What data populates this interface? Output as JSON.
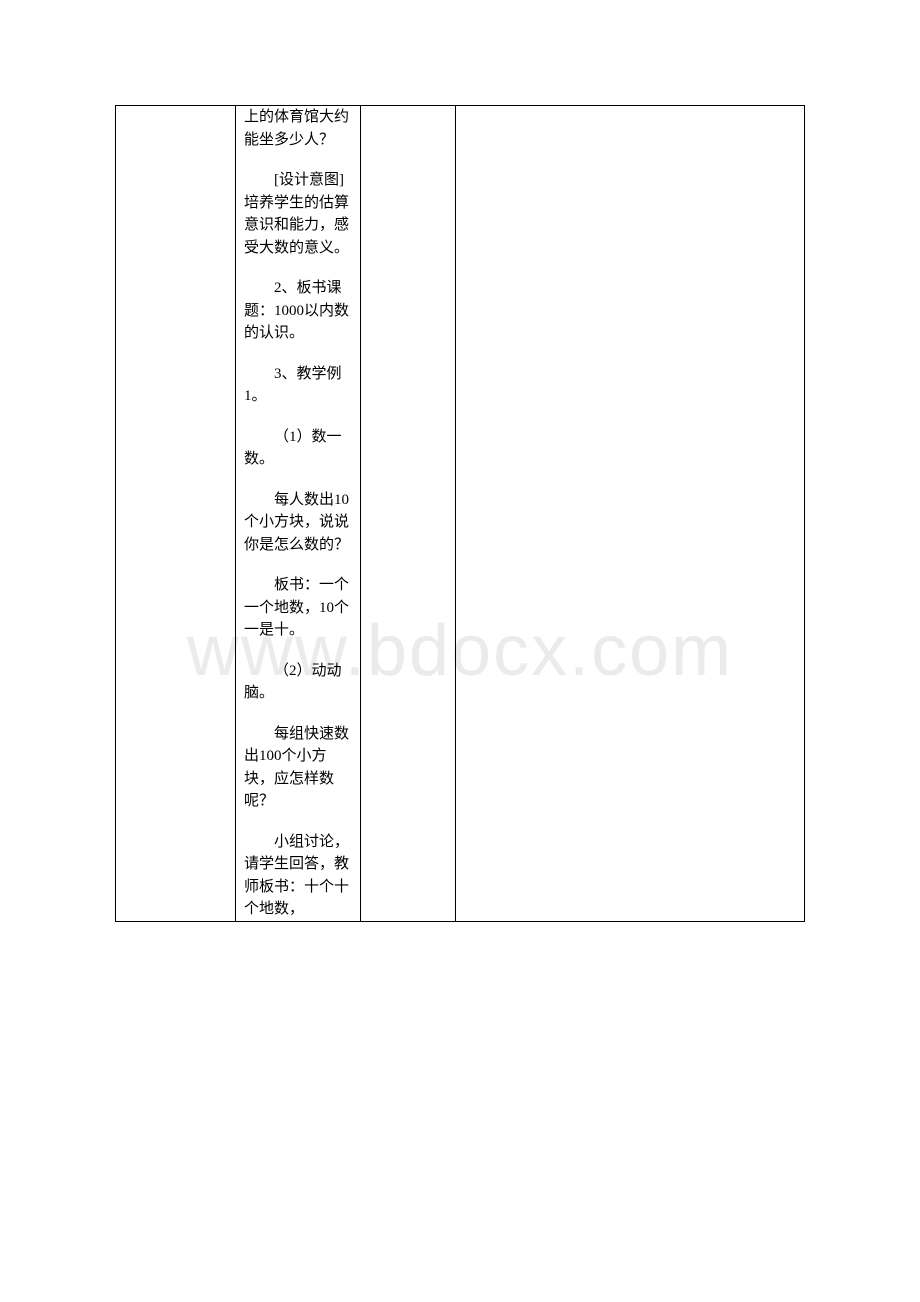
{
  "watermark": "www.bdocx.com",
  "table": {
    "border_color": "#000000",
    "background_color": "#ffffff",
    "text_color": "#000000",
    "font_size": 15,
    "columns": [
      {
        "width": 120
      },
      {
        "width": 125
      },
      {
        "width": 95
      },
      {
        "width": "auto"
      }
    ],
    "content_column": 1,
    "paragraphs": [
      {
        "text": "上的体育馆大约能坐多少人？",
        "indent": false
      },
      {
        "text": "[设计意图]培养学生的估算意识和能力，感受大数的意义。",
        "indent": true
      },
      {
        "text": "2、板书课题：1000以内数的认识。",
        "indent": true
      },
      {
        "text": "3、教学例1。",
        "indent": true
      },
      {
        "text": "（1）数一数。",
        "indent": true
      },
      {
        "text": "每人数出10个小方块，说说你是怎么数的？",
        "indent": true
      },
      {
        "text": "板书：一个一个地数，10个一是十。",
        "indent": true
      },
      {
        "text": "（2）动动脑。",
        "indent": true
      },
      {
        "text": "每组快速数出100个小方块，应怎样数呢？",
        "indent": true
      },
      {
        "text": "小组讨论，请学生回答，教师板书：十个十个地数，",
        "indent": true
      }
    ]
  }
}
